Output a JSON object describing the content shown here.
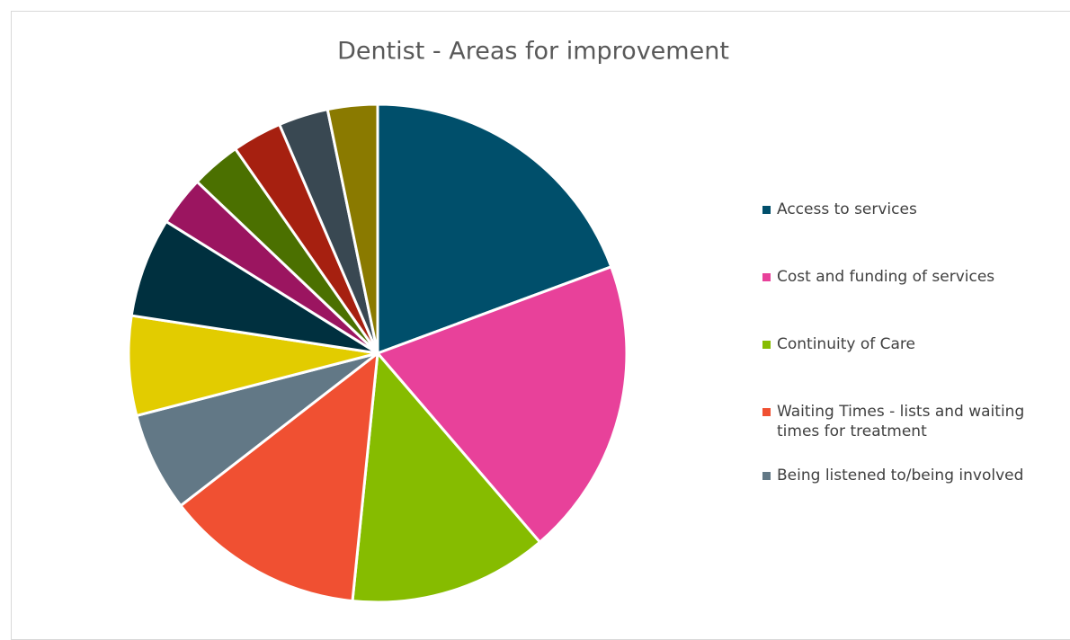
{
  "chart_data": {
    "type": "pie",
    "title": "Dentist - Areas for improvement",
    "categories": [
      "Access to services",
      "Cost and funding of services",
      "Continuity of Care",
      "Waiting Times - lists and waiting times for treatment",
      "Being listened to/being involved",
      null,
      null,
      null,
      null,
      null,
      null,
      null
    ],
    "values": [
      6,
      6,
      4,
      4,
      2,
      2,
      2,
      1,
      1,
      1,
      1,
      1
    ],
    "colors": [
      "#004f6b",
      "#e8419a",
      "#86bc00",
      "#f05032",
      "#627886",
      "#e2cc00",
      "#00303f",
      "#9b1560",
      "#4b7000",
      "#a62010",
      "#394852",
      "#8a7a00"
    ],
    "legend": "right"
  }
}
